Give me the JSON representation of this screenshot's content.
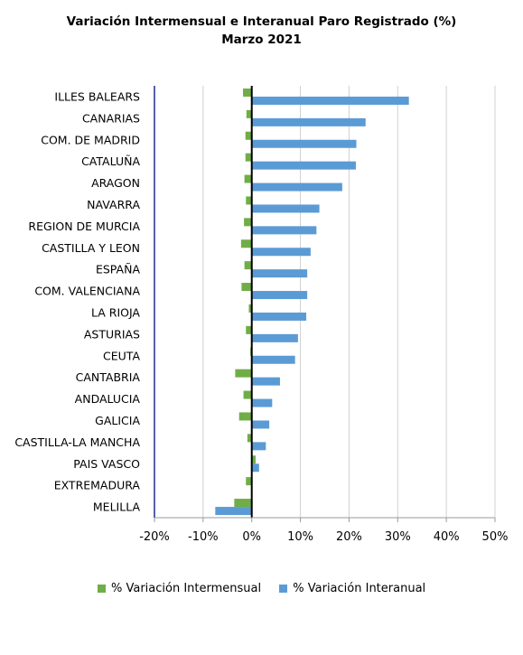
{
  "chart_data": {
    "type": "bar",
    "orientation": "horizontal",
    "title": "Variación Intermensual e Interanual Paro Registrado (%)",
    "subtitle": "Marzo 2021",
    "categories": [
      "ILLES BALEARS",
      "CANARIAS",
      "COM. DE MADRID",
      "CATALUÑA",
      "ARAGON",
      "NAVARRA",
      "REGION DE MURCIA",
      "CASTILLA Y LEON",
      "ESPAÑA",
      "COM. VALENCIANA",
      "LA RIOJA",
      "ASTURIAS",
      "CEUTA",
      "CANTABRIA",
      "ANDALUCIA",
      "GALICIA",
      "CASTILLA-LA MANCHA",
      "PAIS VASCO",
      "EXTREMADURA",
      "MELILLA"
    ],
    "series": [
      {
        "name": "% Variación Intermensual",
        "color": "#70ad47",
        "values": [
          -1.8,
          -1.1,
          -1.3,
          -1.3,
          -1.5,
          -1.2,
          -1.6,
          -2.2,
          -1.5,
          -2.1,
          -0.6,
          -1.2,
          -0.3,
          -3.4,
          -1.7,
          -2.6,
          -0.9,
          0.8,
          -1.2,
          -3.6
        ]
      },
      {
        "name": "% Variación Interanual",
        "color": "#5b9bd5",
        "values": [
          32.3,
          23.4,
          21.5,
          21.4,
          18.6,
          13.9,
          13.3,
          12.1,
          11.4,
          11.4,
          11.2,
          9.5,
          8.9,
          5.8,
          4.2,
          3.6,
          2.9,
          1.5,
          0.0,
          -7.5
        ]
      }
    ],
    "xlim": [
      -20,
      50
    ],
    "xticks": [
      "-20%",
      "-10%",
      "0%",
      "10%",
      "20%",
      "30%",
      "40%",
      "50%"
    ],
    "grid": true,
    "legend": "bottom"
  }
}
